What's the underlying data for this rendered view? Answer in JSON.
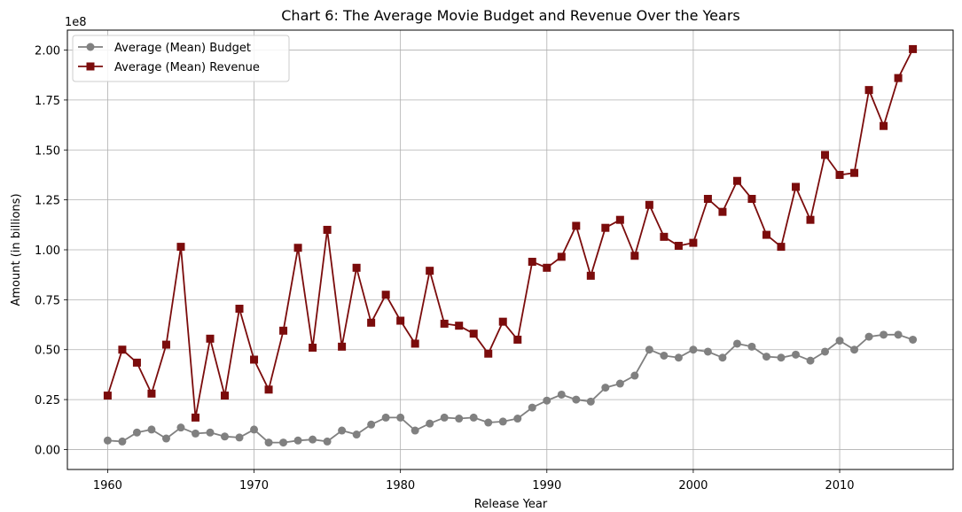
{
  "chart_data": {
    "type": "line",
    "title": "Chart 6: The Average Movie Budget and Revenue Over the Years",
    "xlabel": "Release Year",
    "ylabel": "Amount (in billions)",
    "y_offset_label": "1e8",
    "xlim": [
      1957.25,
      2017.75
    ],
    "ylim": [
      -0.1,
      2.1
    ],
    "xticks": [
      1960,
      1970,
      1980,
      1990,
      2000,
      2010
    ],
    "yticks": [
      0.0,
      0.25,
      0.5,
      0.75,
      1.0,
      1.25,
      1.5,
      1.75,
      2.0
    ],
    "ytick_labels": [
      "0.00",
      "0.25",
      "0.50",
      "0.75",
      "1.00",
      "1.25",
      "1.50",
      "1.75",
      "2.00"
    ],
    "grid": true,
    "legend_position": "top-left",
    "x": [
      1960,
      1961,
      1962,
      1963,
      1964,
      1965,
      1966,
      1967,
      1968,
      1969,
      1970,
      1971,
      1972,
      1973,
      1974,
      1975,
      1976,
      1977,
      1978,
      1979,
      1980,
      1981,
      1982,
      1983,
      1984,
      1985,
      1986,
      1987,
      1988,
      1989,
      1990,
      1991,
      1992,
      1993,
      1994,
      1995,
      1996,
      1997,
      1998,
      1999,
      2000,
      2001,
      2002,
      2003,
      2004,
      2005,
      2006,
      2007,
      2008,
      2009,
      2010,
      2011,
      2012,
      2013,
      2014,
      2015
    ],
    "series": [
      {
        "name": "Average (Mean) Budget",
        "color": "#808080",
        "marker": "circle",
        "values": [
          0.045,
          0.04,
          0.085,
          0.1,
          0.055,
          0.11,
          0.08,
          0.085,
          0.065,
          0.06,
          0.1,
          0.035,
          0.035,
          0.045,
          0.05,
          0.04,
          0.095,
          0.075,
          0.125,
          0.16,
          0.16,
          0.095,
          0.13,
          0.16,
          0.155,
          0.16,
          0.135,
          0.14,
          0.155,
          0.21,
          0.245,
          0.275,
          0.25,
          0.24,
          0.31,
          0.33,
          0.37,
          0.5,
          0.47,
          0.46,
          0.5,
          0.49,
          0.46,
          0.53,
          0.515,
          0.465,
          0.46,
          0.475,
          0.445,
          0.49,
          0.545,
          0.5,
          0.565,
          0.575,
          0.575,
          0.55
        ]
      },
      {
        "name": "Average (Mean) Revenue",
        "color": "#7b0c0c",
        "marker": "square",
        "values": [
          0.27,
          0.5,
          0.435,
          0.28,
          0.525,
          1.015,
          0.16,
          0.555,
          0.27,
          0.705,
          0.45,
          0.3,
          0.595,
          1.01,
          0.51,
          1.1,
          0.515,
          0.91,
          0.635,
          0.775,
          0.645,
          0.53,
          0.895,
          0.63,
          0.62,
          0.58,
          0.48,
          0.64,
          0.55,
          0.94,
          0.91,
          0.965,
          1.12,
          0.87,
          1.11,
          1.15,
          0.97,
          1.225,
          1.065,
          1.02,
          1.035,
          1.255,
          1.19,
          1.345,
          1.255,
          1.075,
          1.015,
          1.315,
          1.15,
          1.475,
          1.375,
          1.385,
          1.8,
          1.62,
          1.86,
          2.005
        ]
      }
    ]
  }
}
